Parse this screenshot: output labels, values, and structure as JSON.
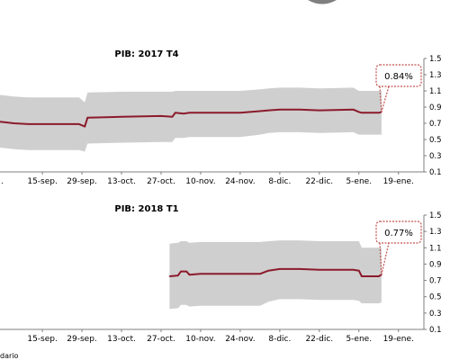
{
  "colors": {
    "line": "#8b1a2b",
    "band": "#cfcfcf",
    "axis": "#7f7f7f",
    "callout_border": "#c0504d",
    "top_shape": "#7f7f7f"
  },
  "footer_text": "dario",
  "chart_data": [
    {
      "type": "line",
      "title": "PIB: 2017 T4",
      "x_type": "date",
      "xlim": [
        "2017-08-31",
        "2018-01-28"
      ],
      "ylim": [
        0.1,
        1.5
      ],
      "y_ticks": [
        "1.5",
        "1.3",
        "1.1",
        "0.9",
        "0.7",
        "0.5",
        "0.3",
        "0.1"
      ],
      "x_ticks": [
        {
          "date": "2017-09-15",
          "label": "15-sep."
        },
        {
          "date": "2017-09-29",
          "label": "29-sep."
        },
        {
          "date": "2017-10-13",
          "label": "13-oct."
        },
        {
          "date": "2017-10-27",
          "label": "27-oct."
        },
        {
          "date": "2017-11-10",
          "label": "10-nov."
        },
        {
          "date": "2017-11-24",
          "label": "24-nov."
        },
        {
          "date": "2017-12-08",
          "label": "8-dic."
        },
        {
          "date": "2017-12-22",
          "label": "22-dic."
        },
        {
          "date": "2018-01-05",
          "label": "5-ene."
        },
        {
          "date": "2018-01-19",
          "label": "19-ene."
        }
      ],
      "truncated_first_label": ".",
      "series": [
        {
          "x": [
            "2017-08-31",
            "2017-09-05",
            "2017-09-10",
            "2017-09-20",
            "2017-09-28",
            "2017-09-30",
            "2017-10-01",
            "2017-10-13",
            "2017-10-27",
            "2017-10-31",
            "2017-11-01",
            "2017-11-04",
            "2017-11-06",
            "2017-11-10",
            "2017-11-24",
            "2017-12-01",
            "2017-12-04",
            "2017-12-08",
            "2017-12-15",
            "2017-12-22",
            "2018-01-03",
            "2018-01-05",
            "2018-01-06",
            "2018-01-12",
            "2018-01-13"
          ],
          "values": [
            0.72,
            0.7,
            0.69,
            0.69,
            0.69,
            0.66,
            0.77,
            0.78,
            0.79,
            0.78,
            0.83,
            0.82,
            0.83,
            0.83,
            0.83,
            0.85,
            0.86,
            0.87,
            0.87,
            0.86,
            0.87,
            0.84,
            0.83,
            0.83,
            0.84
          ],
          "band_upper": [
            1.05,
            1.03,
            1.02,
            1.02,
            1.02,
            0.96,
            1.08,
            1.09,
            1.09,
            1.09,
            1.1,
            1.1,
            1.1,
            1.1,
            1.1,
            1.12,
            1.13,
            1.14,
            1.14,
            1.13,
            1.14,
            1.1,
            1.1,
            1.1,
            1.1
          ],
          "band_lower": [
            0.4,
            0.38,
            0.37,
            0.37,
            0.37,
            0.35,
            0.45,
            0.46,
            0.47,
            0.47,
            0.52,
            0.52,
            0.53,
            0.53,
            0.53,
            0.56,
            0.58,
            0.59,
            0.59,
            0.58,
            0.59,
            0.56,
            0.56,
            0.56,
            0.56
          ]
        }
      ],
      "annotation": {
        "text": "0.84%",
        "date": "2018-01-13",
        "value": 0.84
      }
    },
    {
      "type": "line",
      "title": "PIB: 2018 T1",
      "x_type": "date",
      "xlim": [
        "2017-08-31",
        "2018-01-28"
      ],
      "ylim": [
        0.1,
        1.5
      ],
      "y_ticks": [
        "1.5",
        "1.3",
        "1.1",
        "0.9",
        "0.7",
        "0.5",
        "0.3",
        "0.1"
      ],
      "x_ticks": [
        {
          "date": "2017-09-15",
          "label": "15-sep."
        },
        {
          "date": "2017-09-29",
          "label": "29-sep."
        },
        {
          "date": "2017-10-13",
          "label": "13-oct."
        },
        {
          "date": "2017-10-27",
          "label": "27-oct."
        },
        {
          "date": "2017-11-10",
          "label": "10-nov."
        },
        {
          "date": "2017-11-24",
          "label": "24-nov."
        },
        {
          "date": "2017-12-08",
          "label": "8-dic."
        },
        {
          "date": "2017-12-22",
          "label": "22-dic."
        },
        {
          "date": "2018-01-05",
          "label": "5-ene."
        },
        {
          "date": "2018-01-19",
          "label": "19-ene."
        }
      ],
      "series": [
        {
          "x": [
            "2017-10-30",
            "2017-11-02",
            "2017-11-03",
            "2017-11-05",
            "2017-11-06",
            "2017-11-10",
            "2017-11-24",
            "2017-12-01",
            "2017-12-04",
            "2017-12-08",
            "2017-12-15",
            "2017-12-22",
            "2018-01-03",
            "2018-01-05",
            "2018-01-06",
            "2018-01-12",
            "2018-01-13"
          ],
          "values": [
            0.75,
            0.76,
            0.81,
            0.81,
            0.77,
            0.78,
            0.78,
            0.78,
            0.82,
            0.84,
            0.84,
            0.83,
            0.83,
            0.82,
            0.75,
            0.75,
            0.77
          ],
          "band_upper": [
            1.15,
            1.16,
            1.18,
            1.18,
            1.16,
            1.17,
            1.17,
            1.17,
            1.18,
            1.19,
            1.19,
            1.18,
            1.18,
            1.18,
            1.1,
            1.1,
            1.1
          ],
          "band_lower": [
            0.35,
            0.36,
            0.4,
            0.4,
            0.38,
            0.39,
            0.39,
            0.39,
            0.44,
            0.47,
            0.47,
            0.46,
            0.46,
            0.45,
            0.42,
            0.42,
            0.43
          ]
        }
      ],
      "annotation": {
        "text": "0.77%",
        "date": "2018-01-13",
        "value": 0.77
      }
    }
  ]
}
